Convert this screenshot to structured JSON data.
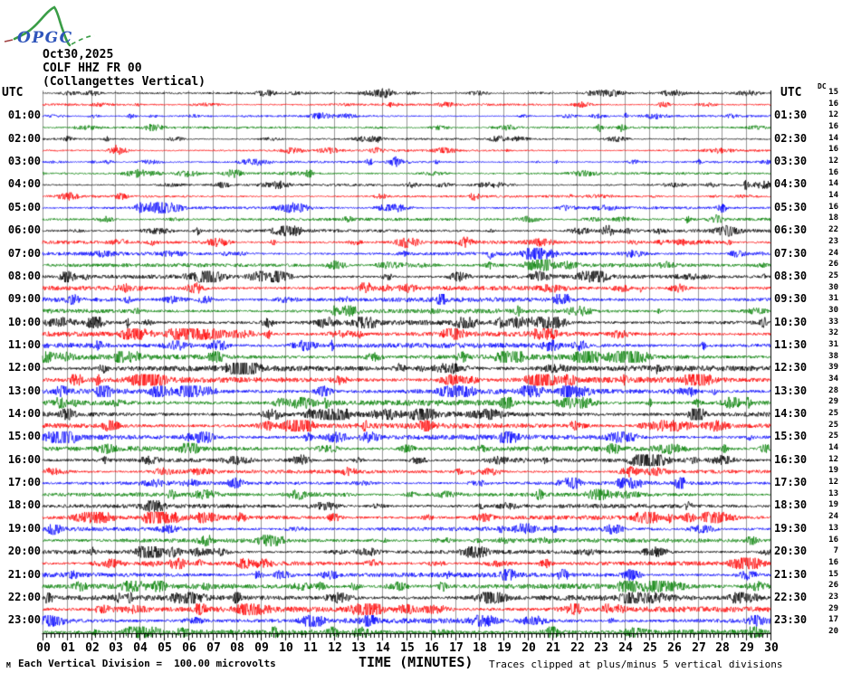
{
  "logo": {
    "text": "OPGC",
    "curve_color": "#3a9d46",
    "text_color": "#2f55bb"
  },
  "header": {
    "date": "Oct30,2025",
    "station": "COLF HHZ FR 00",
    "description": "(Collangettes Vertical)"
  },
  "left_axis": {
    "header": "UTC"
  },
  "right_axis": {
    "header": "UTC",
    "dc_header": "DC"
  },
  "footer": {
    "watermark": "M",
    "scale_note": "Each Vertical Division =  100.00 microvolts",
    "xlabel": "TIME (MINUTES)",
    "clip_note": "Traces clipped at plus/minus 5 vertical divisions"
  },
  "chart_data": {
    "type": "helicorder",
    "date": "Oct30,2025",
    "station_line": "COLF HHZ FR 00",
    "trace_minutes_per_line": 30,
    "vertical_division_microvolts": 100.0,
    "clip_divisions": 5,
    "grid_color": "#999999",
    "trace_colors_cycle": [
      "#000000",
      "#ff0000",
      "#0000ff",
      "#007f00"
    ],
    "x_axis": {
      "label": "TIME (MINUTES)",
      "min": 0,
      "max": 30,
      "minor_ticks_per_minute": 6,
      "tick_labels": [
        "00",
        "01",
        "02",
        "03",
        "04",
        "05",
        "06",
        "07",
        "08",
        "09",
        "10",
        "11",
        "12",
        "13",
        "14",
        "15",
        "16",
        "17",
        "18",
        "19",
        "20",
        "21",
        "22",
        "23",
        "24",
        "25",
        "26",
        "27",
        "28",
        "29",
        "30"
      ]
    },
    "lines": [
      {
        "start": "00:00",
        "left_label": "",
        "right_label": "",
        "color": "#000000",
        "dc": 15,
        "amp": 1.1
      },
      {
        "start": "00:30",
        "left_label": "",
        "right_label": "",
        "color": "#ff0000",
        "dc": 16,
        "amp": 1.1
      },
      {
        "start": "01:00",
        "left_label": "01:00",
        "right_label": "01:30",
        "color": "#0000ff",
        "dc": 12,
        "amp": 1.0
      },
      {
        "start": "01:30",
        "left_label": "",
        "right_label": "",
        "color": "#007f00",
        "dc": 16,
        "amp": 1.1
      },
      {
        "start": "02:00",
        "left_label": "02:00",
        "right_label": "02:30",
        "color": "#000000",
        "dc": 14,
        "amp": 1.0
      },
      {
        "start": "02:30",
        "left_label": "",
        "right_label": "",
        "color": "#ff0000",
        "dc": 16,
        "amp": 1.1
      },
      {
        "start": "03:00",
        "left_label": "03:00",
        "right_label": "03:30",
        "color": "#0000ff",
        "dc": 12,
        "amp": 1.1
      },
      {
        "start": "03:30",
        "left_label": "",
        "right_label": "",
        "color": "#007f00",
        "dc": 16,
        "amp": 1.2
      },
      {
        "start": "04:00",
        "left_label": "04:00",
        "right_label": "04:30",
        "color": "#000000",
        "dc": 14,
        "amp": 1.2
      },
      {
        "start": "04:30",
        "left_label": "",
        "right_label": "",
        "color": "#ff0000",
        "dc": 14,
        "amp": 1.2
      },
      {
        "start": "05:00",
        "left_label": "05:00",
        "right_label": "05:30",
        "color": "#0000ff",
        "dc": 16,
        "amp": 1.3
      },
      {
        "start": "05:30",
        "left_label": "",
        "right_label": "",
        "color": "#007f00",
        "dc": 18,
        "amp": 1.5
      },
      {
        "start": "06:00",
        "left_label": "06:00",
        "right_label": "06:30",
        "color": "#000000",
        "dc": 22,
        "amp": 1.6
      },
      {
        "start": "06:30",
        "left_label": "",
        "right_label": "",
        "color": "#ff0000",
        "dc": 23,
        "amp": 1.7
      },
      {
        "start": "07:00",
        "left_label": "07:00",
        "right_label": "07:30",
        "color": "#0000ff",
        "dc": 24,
        "amp": 1.8
      },
      {
        "start": "07:30",
        "left_label": "",
        "right_label": "",
        "color": "#007f00",
        "dc": 26,
        "amp": 1.9
      },
      {
        "start": "08:00",
        "left_label": "08:00",
        "right_label": "08:30",
        "color": "#000000",
        "dc": 25,
        "amp": 2.0
      },
      {
        "start": "08:30",
        "left_label": "",
        "right_label": "",
        "color": "#ff0000",
        "dc": 30,
        "amp": 2.2
      },
      {
        "start": "09:00",
        "left_label": "09:00",
        "right_label": "09:30",
        "color": "#0000ff",
        "dc": 31,
        "amp": 2.3
      },
      {
        "start": "09:30",
        "left_label": "",
        "right_label": "",
        "color": "#007f00",
        "dc": 30,
        "amp": 2.2
      },
      {
        "start": "10:00",
        "left_label": "10:00",
        "right_label": "10:30",
        "color": "#000000",
        "dc": 33,
        "amp": 2.4
      },
      {
        "start": "10:30",
        "left_label": "",
        "right_label": "",
        "color": "#ff0000",
        "dc": 32,
        "amp": 2.4
      },
      {
        "start": "11:00",
        "left_label": "11:00",
        "right_label": "11:30",
        "color": "#0000ff",
        "dc": 31,
        "amp": 2.5
      },
      {
        "start": "11:30",
        "left_label": "",
        "right_label": "",
        "color": "#007f00",
        "dc": 38,
        "amp": 2.7
      },
      {
        "start": "12:00",
        "left_label": "12:00",
        "right_label": "12:30",
        "color": "#000000",
        "dc": 39,
        "amp": 2.8
      },
      {
        "start": "12:30",
        "left_label": "",
        "right_label": "",
        "color": "#ff0000",
        "dc": 34,
        "amp": 2.8
      },
      {
        "start": "13:00",
        "left_label": "13:00",
        "right_label": "13:30",
        "color": "#0000ff",
        "dc": 28,
        "amp": 2.7
      },
      {
        "start": "13:30",
        "left_label": "",
        "right_label": "",
        "color": "#007f00",
        "dc": 29,
        "amp": 2.8
      },
      {
        "start": "14:00",
        "left_label": "14:00",
        "right_label": "14:30",
        "color": "#000000",
        "dc": 25,
        "amp": 2.8
      },
      {
        "start": "14:30",
        "left_label": "",
        "right_label": "",
        "color": "#ff0000",
        "dc": 25,
        "amp": 2.7
      },
      {
        "start": "15:00",
        "left_label": "15:00",
        "right_label": "15:30",
        "color": "#0000ff",
        "dc": 25,
        "amp": 2.6
      },
      {
        "start": "15:30",
        "left_label": "",
        "right_label": "",
        "color": "#007f00",
        "dc": 14,
        "amp": 2.4
      },
      {
        "start": "16:00",
        "left_label": "16:00",
        "right_label": "16:30",
        "color": "#000000",
        "dc": 12,
        "amp": 1.9
      },
      {
        "start": "16:30",
        "left_label": "",
        "right_label": "",
        "color": "#ff0000",
        "dc": 19,
        "amp": 1.8
      },
      {
        "start": "17:00",
        "left_label": "17:00",
        "right_label": "17:30",
        "color": "#0000ff",
        "dc": 12,
        "amp": 1.8
      },
      {
        "start": "17:30",
        "left_label": "",
        "right_label": "",
        "color": "#007f00",
        "dc": 13,
        "amp": 1.9
      },
      {
        "start": "18:00",
        "left_label": "18:00",
        "right_label": "18:30",
        "color": "#000000",
        "dc": 19,
        "amp": 2.0
      },
      {
        "start": "18:30",
        "left_label": "",
        "right_label": "",
        "color": "#ff0000",
        "dc": 24,
        "amp": 2.2
      },
      {
        "start": "19:00",
        "left_label": "19:00",
        "right_label": "19:30",
        "color": "#0000ff",
        "dc": 13,
        "amp": 2.1
      },
      {
        "start": "19:30",
        "left_label": "",
        "right_label": "",
        "color": "#007f00",
        "dc": 16,
        "amp": 2.0
      },
      {
        "start": "20:00",
        "left_label": "20:00",
        "right_label": "20:30",
        "color": "#000000",
        "dc": 7,
        "amp": 2.0
      },
      {
        "start": "20:30",
        "left_label": "",
        "right_label": "",
        "color": "#ff0000",
        "dc": 16,
        "amp": 2.1
      },
      {
        "start": "21:00",
        "left_label": "21:00",
        "right_label": "21:30",
        "color": "#0000ff",
        "dc": 15,
        "amp": 2.4
      },
      {
        "start": "21:30",
        "left_label": "",
        "right_label": "",
        "color": "#007f00",
        "dc": 26,
        "amp": 2.6
      },
      {
        "start": "22:00",
        "left_label": "22:00",
        "right_label": "22:30",
        "color": "#000000",
        "dc": 23,
        "amp": 2.7
      },
      {
        "start": "22:30",
        "left_label": "",
        "right_label": "",
        "color": "#ff0000",
        "dc": 29,
        "amp": 2.8
      },
      {
        "start": "23:00",
        "left_label": "23:00",
        "right_label": "23:30",
        "color": "#0000ff",
        "dc": 17,
        "amp": 2.6
      },
      {
        "start": "23:30",
        "left_label": "",
        "right_label": "",
        "color": "#007f00",
        "dc": 20,
        "amp": 2.6
      }
    ]
  }
}
